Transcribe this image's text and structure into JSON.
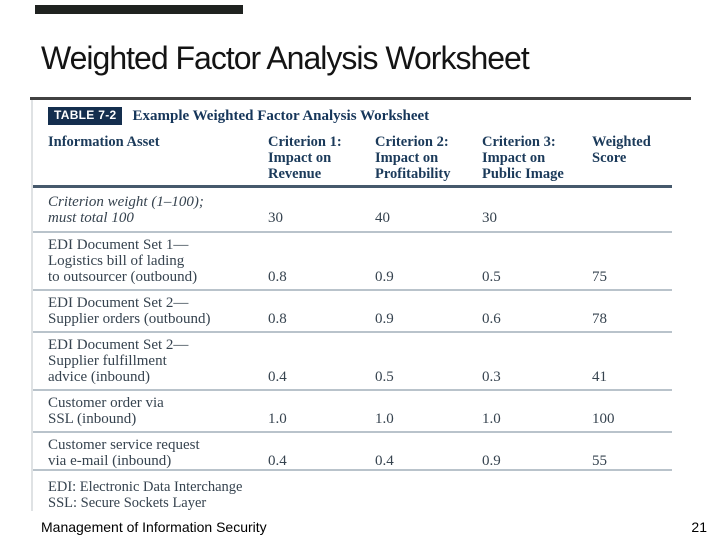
{
  "slide": {
    "title": "Weighted Factor Analysis Worksheet",
    "footer": "Management of Information Security",
    "page_number": "21"
  },
  "colors": {
    "badge_navy": "#142e4e",
    "header_navy": "#1b3a5a",
    "body_text": "#36434f",
    "divider_gray": "#b9c3cb",
    "header_rule": "#46596c"
  },
  "table": {
    "badge": "TABLE 7-2",
    "caption": "Example Weighted Factor Analysis Worksheet",
    "columns": [
      {
        "lines": [
          "Information Asset"
        ]
      },
      {
        "lines": [
          "Criterion 1:",
          "Impact on",
          "Revenue"
        ]
      },
      {
        "lines": [
          "Criterion 2:",
          "Impact on",
          "Profitability"
        ]
      },
      {
        "lines": [
          "Criterion 3:",
          "Impact on",
          "Public Image"
        ]
      },
      {
        "lines": [
          "Weighted",
          "Score"
        ]
      }
    ],
    "rows": [
      {
        "asset_lines": [
          "Criterion weight (1–100);",
          "must total 100"
        ],
        "italic": true,
        "values": [
          "30",
          "40",
          "30",
          ""
        ]
      },
      {
        "asset_lines": [
          "EDI Document Set 1—",
          "Logistics bill of lading",
          "to outsourcer (outbound)"
        ],
        "italic": false,
        "values": [
          "0.8",
          "0.9",
          "0.5",
          "75"
        ]
      },
      {
        "asset_lines": [
          "EDI Document Set 2—",
          "Supplier orders (outbound)"
        ],
        "italic": false,
        "values": [
          "0.8",
          "0.9",
          "0.6",
          "78"
        ]
      },
      {
        "asset_lines": [
          "EDI Document Set 2—",
          "Supplier fulfillment",
          "advice (inbound)"
        ],
        "italic": false,
        "values": [
          "0.4",
          "0.5",
          "0.3",
          "41"
        ]
      },
      {
        "asset_lines": [
          "Customer order via",
          "SSL (inbound)"
        ],
        "italic": false,
        "values": [
          "1.0",
          "1.0",
          "1.0",
          "100"
        ]
      },
      {
        "asset_lines": [
          "Customer service request",
          "via e-mail (inbound)"
        ],
        "italic": false,
        "values": [
          "0.4",
          "0.4",
          "0.9",
          "55"
        ]
      }
    ],
    "notes": [
      "EDI: Electronic Data Interchange",
      "SSL: Secure Sockets Layer"
    ]
  }
}
